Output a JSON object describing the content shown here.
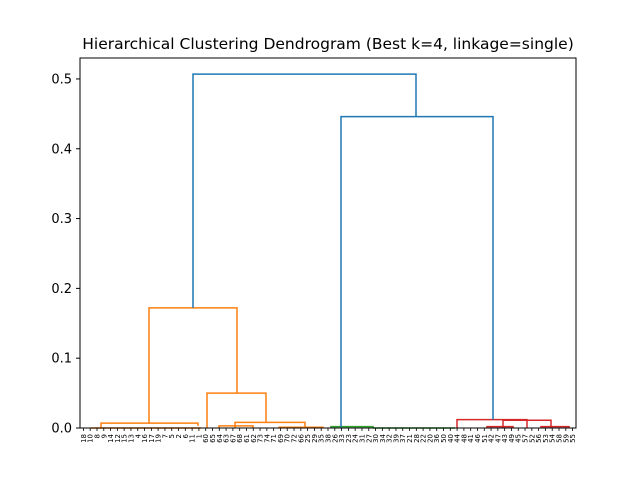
{
  "chart_data": {
    "type": "dendrogram",
    "title": "Hierarchical Clustering Dendrogram (Best k=4, linkage=single)",
    "ylim": [
      0,
      0.53
    ],
    "yticks": [
      "0.0",
      "0.1",
      "0.2",
      "0.3",
      "0.4",
      "0.5"
    ],
    "ytick_values": [
      0.0,
      0.1,
      0.2,
      0.3,
      0.4,
      0.5
    ],
    "grid": false,
    "colors": {
      "above_threshold": "#1f77b4",
      "cluster_1": "#ff7f0e",
      "cluster_2": "#2ca02c",
      "cluster_3": "#d62728"
    },
    "leaves": [
      "18",
      "10",
      "8",
      "9",
      "14",
      "12",
      "15",
      "13",
      "4",
      "16",
      "17",
      "19",
      "7",
      "5",
      "2",
      "6",
      "11",
      "1",
      "60",
      "65",
      "64",
      "63",
      "67",
      "68",
      "61",
      "62",
      "73",
      "74",
      "71",
      "69",
      "70",
      "72",
      "66",
      "25",
      "29",
      "35",
      "38",
      "26",
      "33",
      "23",
      "24",
      "31",
      "27",
      "30",
      "34",
      "32",
      "39",
      "37",
      "21",
      "28",
      "22",
      "20",
      "36",
      "50",
      "40",
      "44",
      "48",
      "41",
      "46",
      "51",
      "42",
      "47",
      "43",
      "49",
      "45",
      "57",
      "52",
      "56",
      "53",
      "54",
      "58",
      "59",
      "55"
    ],
    "links": [
      {
        "x": [
          91,
          201,
          201,
          201
        ],
        "y": [
          0.0,
          0.0,
          0.0,
          0.0
        ],
        "color": "cluster_1"
      },
      {
        "x": [
          101,
          101,
          198,
          198
        ],
        "y": [
          0.0,
          0.007,
          0.007,
          0.003
        ],
        "color": "cluster_1"
      },
      {
        "x": [
          219,
          219,
          253,
          253
        ],
        "y": [
          0.0,
          0.003,
          0.003,
          0.0
        ],
        "color": "cluster_1"
      },
      {
        "x": [
          235,
          235,
          305,
          305
        ],
        "y": [
          0.0,
          0.008,
          0.008,
          0.0
        ],
        "color": "cluster_1"
      },
      {
        "x": [
          207,
          207,
          266,
          266
        ],
        "y": [
          0.0,
          0.05,
          0.05,
          0.008
        ],
        "color": "cluster_1"
      },
      {
        "x": [
          149,
          149,
          237,
          237
        ],
        "y": [
          0.007,
          0.172,
          0.172,
          0.05
        ],
        "color": "cluster_1"
      },
      {
        "x": [
          279,
          279,
          323,
          323
        ],
        "y": [
          0.0,
          0.001,
          0.001,
          0.0
        ],
        "color": "cluster_1"
      },
      {
        "x": [
          331,
          331,
          373,
          373
        ],
        "y": [
          0.0,
          0.002,
          0.002,
          0.0
        ],
        "color": "cluster_2"
      },
      {
        "x": [
          373,
          373,
          455,
          455
        ],
        "y": [
          0.0,
          0.0,
          0.0,
          0.0
        ],
        "color": "cluster_2"
      },
      {
        "x": [
          457,
          457,
          527,
          527
        ],
        "y": [
          0.0,
          0.012,
          0.012,
          0.0
        ],
        "color": "cluster_3"
      },
      {
        "x": [
          503,
          503,
          551,
          551
        ],
        "y": [
          0.0,
          0.011,
          0.011,
          0.0
        ],
        "color": "cluster_3"
      },
      {
        "x": [
          487,
          487,
          513,
          513
        ],
        "y": [
          0.0,
          0.002,
          0.002,
          0.0
        ],
        "color": "cluster_3"
      },
      {
        "x": [
          541,
          541,
          569,
          569
        ],
        "y": [
          0.0,
          0.002,
          0.002,
          0.0
        ],
        "color": "cluster_3"
      },
      {
        "x": [
          341,
          341,
          493,
          493
        ],
        "y": [
          0.001,
          0.446,
          0.446,
          0.012
        ],
        "color": "above_threshold"
      },
      {
        "x": [
          193,
          193,
          416,
          416
        ],
        "y": [
          0.172,
          0.507,
          0.507,
          0.446
        ],
        "color": "above_threshold"
      }
    ]
  }
}
